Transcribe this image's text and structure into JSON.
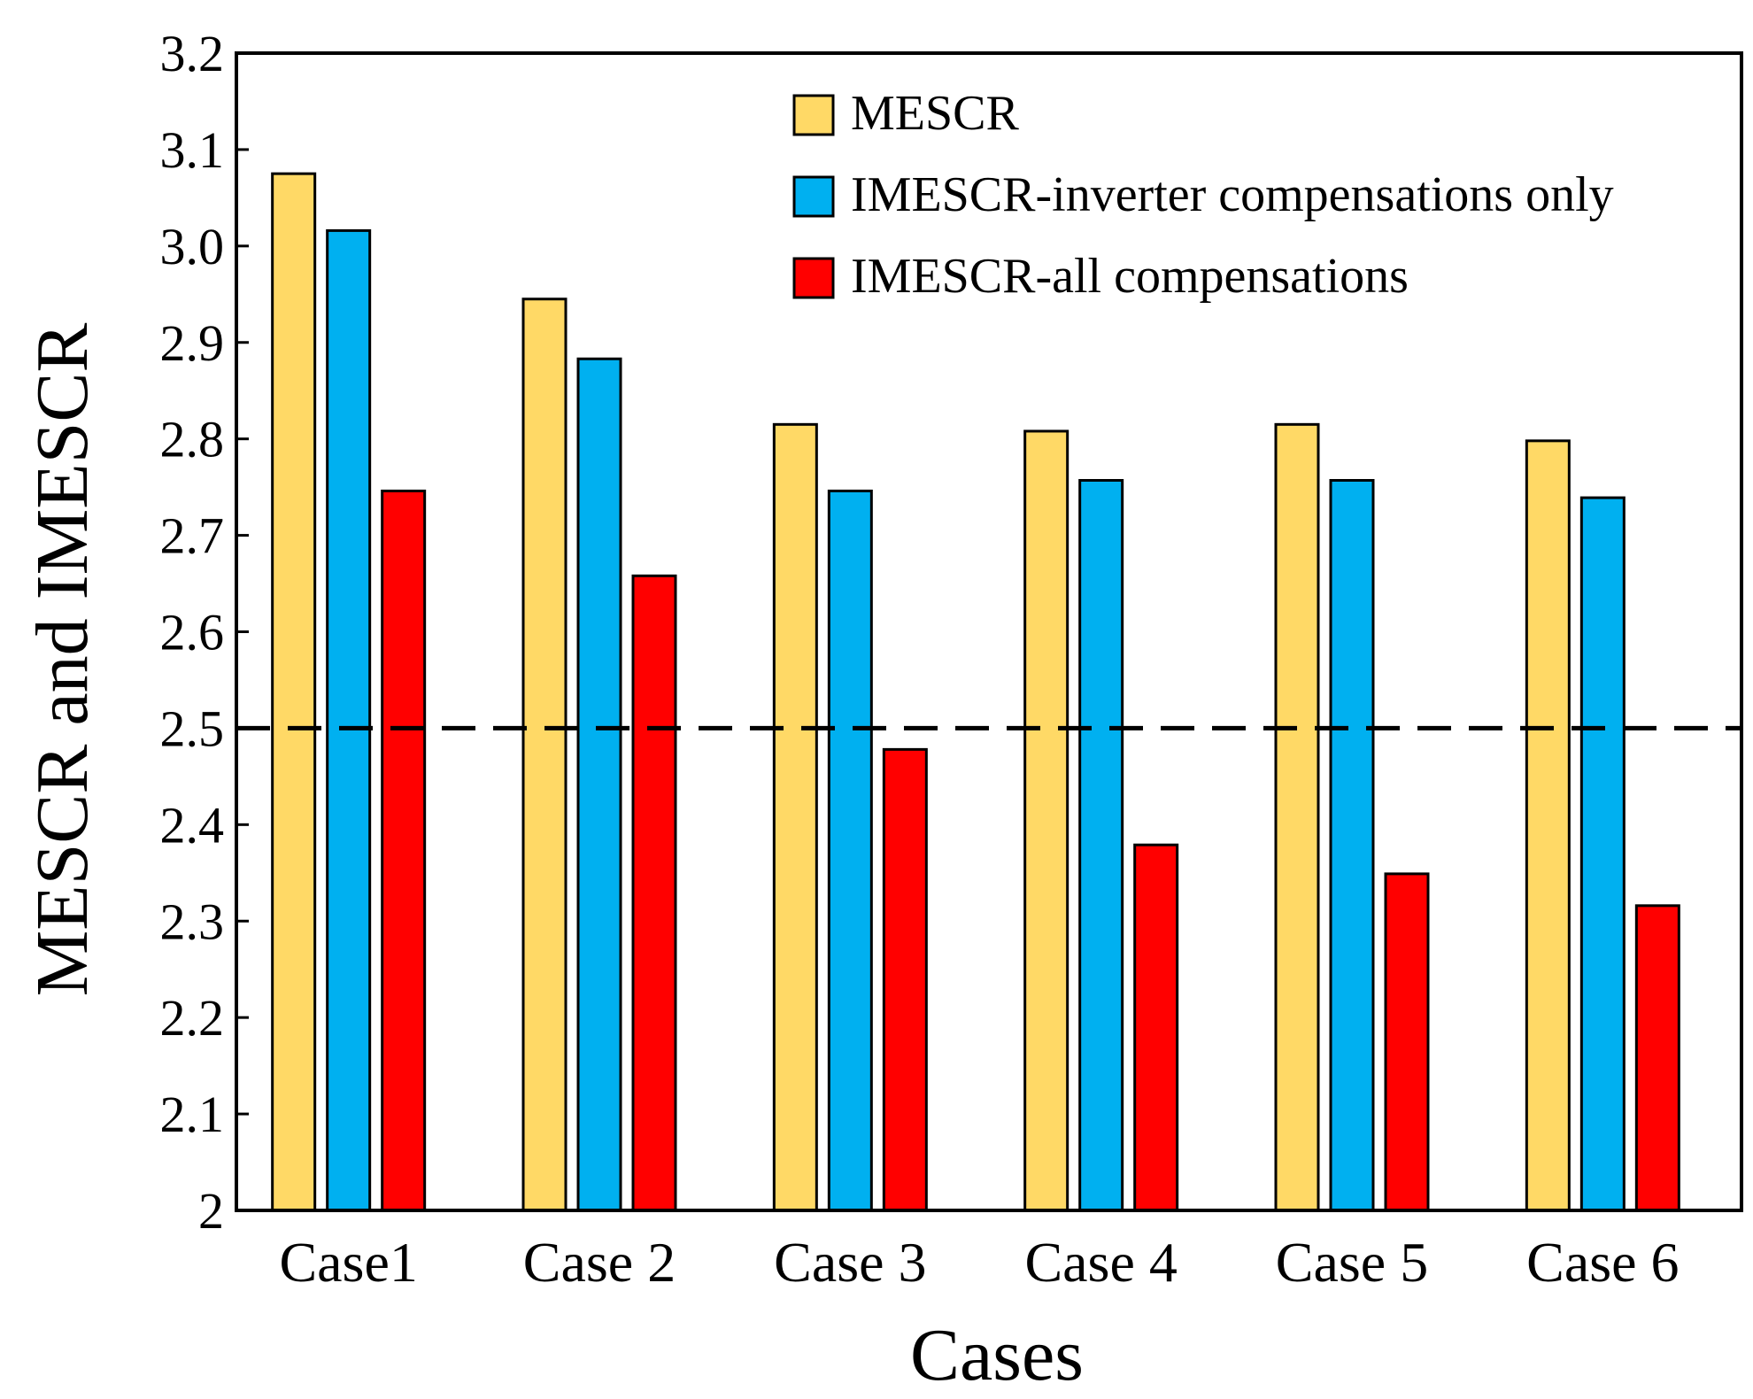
{
  "chart_data": {
    "type": "bar",
    "title": "",
    "xlabel": "Cases",
    "ylabel": "MESCR and IMESCR",
    "ylim": [
      2,
      3.2
    ],
    "yticks": [
      "2",
      "2.1",
      "2.2",
      "2.3",
      "2.4",
      "2.5",
      "2.6",
      "2.7",
      "2.8",
      "2.9",
      "3.0",
      "3.1",
      "3.2"
    ],
    "categories": [
      "Case1",
      "Case 2",
      "Case 3",
      "Case 4",
      "Case 5",
      "Case 6"
    ],
    "series": [
      {
        "name": "MESCR",
        "color": "#FFD966",
        "values": [
          3.075,
          2.945,
          2.815,
          2.808,
          2.815,
          2.798
        ]
      },
      {
        "name": "IMESCR-inverter compensations only",
        "color": "#00B0F0",
        "values": [
          3.016,
          2.883,
          2.746,
          2.757,
          2.757,
          2.739
        ]
      },
      {
        "name": "IMESCR-all compensations",
        "color": "#FF0000",
        "values": [
          2.746,
          2.658,
          2.478,
          2.379,
          2.349,
          2.316
        ]
      }
    ],
    "reference_line": {
      "value": 2.5,
      "style": "dashed",
      "color": "#000000"
    },
    "legend_position": "top-center",
    "grid": false
  }
}
